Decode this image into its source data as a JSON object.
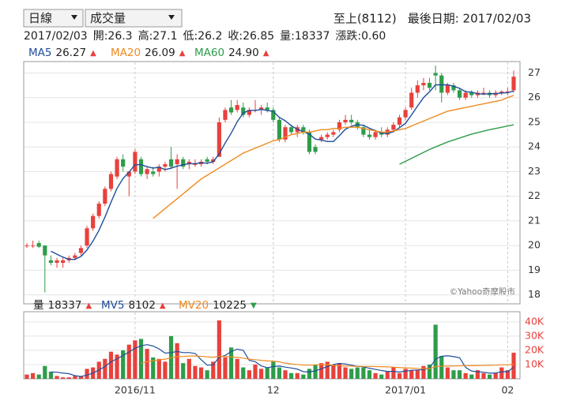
{
  "header": {
    "period": "日線",
    "indicator": "成交量",
    "stock": "至上(8112)",
    "last_date": "最後日期: 2017/02/03"
  },
  "quote": [
    "2017/02/03",
    "開:26.3",
    "高:27.1",
    "低:26.2",
    "收:26.85",
    "量:18337",
    "漲跌:0.60"
  ],
  "chart_data": [
    {
      "type": "candlestick",
      "up_color": "#e8413c",
      "down_color": "#2e9c4a",
      "source": "©Yahoo奇摩股市",
      "ylim": [
        17.7,
        27.4
      ],
      "yticks": [
        18,
        19,
        20,
        21,
        22,
        23,
        24,
        25,
        26,
        27
      ],
      "grid": true,
      "open": [
        20.0,
        20.0,
        20.1,
        20.0,
        19.4,
        19.3,
        19.3,
        19.4,
        19.5,
        19.7,
        20.0,
        20.7,
        21.2,
        21.7,
        22.3,
        22.8,
        23.5,
        22.8,
        23.0,
        23.5,
        22.9,
        23.0,
        23.0,
        23.2,
        23.5,
        23.3,
        23.5,
        23.3,
        23.3,
        23.3,
        23.5,
        23.4,
        23.6,
        25.1,
        25.6,
        25.5,
        25.6,
        25.3,
        25.5,
        25.5,
        25.6,
        25.5,
        25.1,
        24.3,
        24.8,
        24.6,
        24.8,
        24.6,
        24.0,
        24.3,
        24.4,
        24.5,
        24.7,
        25.0,
        25.1,
        25.0,
        24.8,
        24.5,
        24.4,
        24.6,
        24.5,
        24.7,
        24.9,
        25.2,
        25.6,
        26.2,
        26.5,
        26.6,
        27.0,
        26.9,
        26.2,
        26.5,
        26.3,
        26.0,
        26.2,
        26.1,
        26.2,
        26.2,
        26.1,
        26.2,
        26.2,
        26.3
      ],
      "high": [
        20.1,
        20.2,
        20.2,
        20.0,
        19.6,
        19.5,
        19.5,
        19.6,
        19.7,
        20.0,
        20.8,
        21.3,
        21.8,
        22.4,
        23.0,
        23.6,
        23.7,
        23.0,
        23.9,
        23.6,
        23.2,
        23.2,
        23.3,
        23.4,
        24.0,
        23.7,
        23.6,
        23.5,
        23.5,
        23.5,
        23.6,
        23.6,
        25.2,
        25.6,
        25.9,
        25.9,
        25.8,
        25.6,
        25.9,
        25.7,
        25.8,
        25.6,
        25.2,
        24.9,
        24.9,
        24.9,
        24.9,
        24.7,
        24.1,
        24.5,
        24.6,
        24.7,
        25.1,
        25.3,
        25.3,
        25.1,
        24.9,
        24.7,
        24.7,
        24.8,
        24.8,
        25.0,
        25.3,
        25.6,
        26.4,
        26.7,
        26.8,
        26.8,
        27.3,
        27.0,
        26.6,
        26.6,
        26.4,
        26.3,
        26.3,
        26.3,
        26.4,
        26.3,
        26.3,
        26.3,
        26.4,
        27.1
      ],
      "low": [
        19.9,
        19.9,
        19.9,
        18.1,
        19.2,
        19.1,
        19.1,
        19.3,
        19.4,
        19.6,
        19.9,
        20.6,
        21.1,
        21.6,
        22.2,
        22.7,
        23.0,
        22.0,
        22.9,
        22.8,
        22.7,
        22.8,
        22.8,
        23.0,
        23.1,
        22.3,
        23.1,
        23.1,
        23.2,
        23.2,
        23.3,
        23.3,
        23.6,
        25.0,
        25.3,
        25.4,
        25.2,
        25.2,
        25.4,
        25.3,
        25.4,
        25.0,
        24.2,
        24.2,
        24.5,
        24.4,
        24.5,
        23.7,
        23.7,
        24.2,
        24.3,
        24.4,
        24.6,
        24.9,
        24.9,
        24.7,
        24.4,
        24.3,
        24.3,
        24.4,
        24.4,
        24.6,
        24.8,
        25.1,
        25.5,
        26.0,
        26.3,
        26.3,
        26.3,
        25.8,
        26.1,
        26.2,
        25.9,
        25.9,
        26.0,
        26.0,
        26.1,
        26.0,
        26.0,
        26.1,
        26.1,
        26.2
      ],
      "close": [
        20.0,
        20.0,
        19.95,
        19.6,
        19.3,
        19.4,
        19.4,
        19.5,
        19.6,
        19.9,
        20.7,
        21.2,
        21.7,
        22.3,
        22.9,
        23.5,
        23.2,
        23.0,
        23.8,
        22.9,
        23.1,
        22.9,
        23.2,
        23.3,
        23.2,
        23.5,
        23.2,
        23.4,
        23.3,
        23.4,
        23.4,
        23.5,
        25.0,
        25.5,
        25.4,
        25.7,
        25.3,
        25.5,
        25.5,
        25.6,
        25.5,
        25.1,
        24.3,
        24.8,
        24.6,
        24.8,
        24.6,
        23.8,
        23.8,
        24.4,
        24.5,
        24.6,
        25.0,
        25.1,
        25.0,
        24.8,
        24.5,
        24.4,
        24.6,
        24.5,
        24.7,
        24.9,
        25.2,
        25.5,
        26.2,
        26.5,
        26.6,
        26.4,
        26.9,
        26.2,
        26.5,
        26.3,
        26.0,
        26.2,
        26.1,
        26.2,
        26.2,
        26.1,
        26.2,
        26.25,
        26.25,
        26.85
      ],
      "series": [
        {
          "name": "MA5",
          "color": "#1f4e9c",
          "legend_value": 26.27,
          "arrow": "▲",
          "arrow_color": "#e8413c",
          "values": [
            null,
            null,
            null,
            null,
            19.77,
            19.65,
            19.53,
            19.44,
            19.44,
            19.56,
            19.82,
            20.18,
            20.62,
            21.16,
            21.76,
            22.32,
            22.72,
            22.98,
            23.28,
            23.28,
            23.2,
            23.14,
            23.18,
            23.08,
            23.14,
            23.22,
            23.28,
            23.32,
            23.32,
            23.36,
            23.34,
            23.4,
            23.72,
            24.16,
            24.56,
            25.02,
            25.38,
            25.48,
            25.48,
            25.52,
            25.48,
            25.44,
            25.2,
            25.06,
            24.86,
            24.72,
            24.62,
            24.52,
            24.32,
            24.28,
            24.22,
            24.22,
            24.46,
            24.72,
            24.84,
            24.9,
            24.88,
            24.76,
            24.66,
            24.56,
            24.54,
            24.62,
            24.78,
            24.96,
            25.3,
            25.66,
            26.0,
            26.24,
            26.52,
            26.52,
            26.52,
            26.46,
            26.38,
            26.24,
            26.22,
            26.16,
            26.14,
            26.16,
            26.16,
            26.19,
            26.2,
            26.27
          ]
        },
        {
          "name": "MA20",
          "color": "#ef8a1f",
          "legend_value": 26.09,
          "arrow": "▲",
          "arrow_color": "#e8413c",
          "values": [
            null,
            null,
            null,
            null,
            null,
            null,
            null,
            null,
            null,
            null,
            null,
            null,
            null,
            null,
            null,
            null,
            null,
            null,
            null,
            null,
            null,
            21.1,
            21.3,
            21.5,
            21.7,
            21.9,
            22.1,
            22.3,
            22.5,
            22.7,
            22.85,
            23.0,
            23.15,
            23.3,
            23.45,
            23.6,
            23.75,
            23.85,
            23.95,
            24.05,
            24.15,
            24.25,
            24.3,
            24.4,
            24.5,
            24.55,
            24.6,
            24.6,
            24.65,
            24.7,
            24.7,
            24.75,
            24.75,
            24.8,
            24.8,
            24.8,
            24.75,
            24.7,
            24.65,
            24.6,
            24.6,
            24.65,
            24.7,
            24.75,
            24.85,
            24.95,
            25.05,
            25.15,
            25.25,
            25.35,
            25.45,
            25.5,
            25.55,
            25.6,
            25.65,
            25.7,
            25.75,
            25.8,
            25.85,
            25.9,
            26.0,
            26.09
          ]
        },
        {
          "name": "MA60",
          "color": "#2e9c4a",
          "legend_value": {
            "value": 24.9,
            "label": "24.90"
          },
          "arrow": "▲",
          "arrow_color": "#e8413c",
          "values": [
            null,
            null,
            null,
            null,
            null,
            null,
            null,
            null,
            null,
            null,
            null,
            null,
            null,
            null,
            null,
            null,
            null,
            null,
            null,
            null,
            null,
            null,
            null,
            null,
            null,
            null,
            null,
            null,
            null,
            null,
            null,
            null,
            null,
            null,
            null,
            null,
            null,
            null,
            null,
            null,
            null,
            null,
            null,
            null,
            null,
            null,
            null,
            null,
            null,
            null,
            null,
            null,
            null,
            null,
            null,
            null,
            null,
            null,
            null,
            null,
            null,
            null,
            23.3,
            23.42,
            23.54,
            23.66,
            23.78,
            23.9,
            24.0,
            24.1,
            24.2,
            24.28,
            24.36,
            24.44,
            24.52,
            24.58,
            24.64,
            24.7,
            24.75,
            24.8,
            24.85,
            24.9
          ]
        }
      ]
    },
    {
      "type": "bar",
      "categories": [
        null,
        null,
        null,
        null,
        null,
        null,
        null,
        null,
        null,
        null,
        null,
        null,
        null,
        null,
        null,
        null,
        null,
        null,
        "2016/11",
        null,
        null,
        null,
        null,
        null,
        null,
        null,
        null,
        null,
        null,
        null,
        null,
        null,
        null,
        null,
        null,
        null,
        null,
        null,
        null,
        null,
        null,
        "12",
        null,
        null,
        null,
        null,
        null,
        null,
        null,
        null,
        null,
        null,
        null,
        null,
        null,
        null,
        null,
        null,
        null,
        null,
        null,
        null,
        null,
        "2017/01",
        null,
        null,
        null,
        null,
        null,
        null,
        null,
        null,
        null,
        null,
        null,
        null,
        null,
        null,
        null,
        null,
        "02",
        null
      ],
      "ylim": [
        0,
        46000
      ],
      "yticks": [
        {
          "value": 10000,
          "label": "10K"
        },
        {
          "value": 20000,
          "label": "20K"
        },
        {
          "value": 30000,
          "label": "30K"
        },
        {
          "value": 40000,
          "label": "40K"
        }
      ],
      "series": [
        {
          "name": "量",
          "type": "bar",
          "color": "#222222",
          "legend_value": 18337,
          "arrow": "▲",
          "arrow_color": "#e8413c",
          "values": [
            3000,
            4000,
            3000,
            9000,
            5000,
            2000,
            1000,
            1000,
            2000,
            2000,
            7000,
            8000,
            12000,
            14000,
            19000,
            17000,
            20000,
            24000,
            27000,
            28000,
            21000,
            15000,
            14000,
            12000,
            30000,
            25000,
            11000,
            14000,
            9000,
            8000,
            6000,
            12000,
            41000,
            15000,
            22000,
            14000,
            8000,
            6000,
            10000,
            7000,
            8000,
            12000,
            8000,
            6000,
            4000,
            4000,
            3000,
            7000,
            10000,
            11000,
            12000,
            10000,
            11000,
            8000,
            7000,
            8000,
            8000,
            6000,
            4000,
            3000,
            5000,
            8000,
            4000,
            7000,
            6000,
            6000,
            9000,
            10000,
            38000,
            16000,
            8000,
            6000,
            6000,
            4000,
            3000,
            6000,
            4000,
            3000,
            4000,
            8000,
            6000,
            18337
          ]
        },
        {
          "name": "MV5",
          "type": "line",
          "color": "#1f4e9c",
          "legend_value": 8102,
          "arrow": "▲",
          "arrow_color": "#e8413c",
          "values": [
            null,
            null,
            null,
            null,
            4800,
            4600,
            4000,
            3600,
            2200,
            1600,
            2600,
            4000,
            6200,
            8600,
            12000,
            14000,
            16400,
            18800,
            21400,
            23200,
            24000,
            23000,
            21000,
            18000,
            18400,
            19200,
            18400,
            18400,
            17800,
            13400,
            9600,
            9800,
            15200,
            16400,
            19200,
            20800,
            20000,
            13000,
            12000,
            9000,
            7800,
            8600,
            9000,
            8200,
            7600,
            6800,
            5000,
            4800,
            5600,
            7000,
            8600,
            10000,
            10800,
            10400,
            9600,
            8800,
            8400,
            7400,
            6600,
            5800,
            5200,
            5200,
            4800,
            5400,
            6000,
            6200,
            6400,
            7600,
            13800,
            15800,
            16200,
            15600,
            14800,
            8000,
            5400,
            5000,
            4600,
            4000,
            4000,
            5000,
            5000,
            8102
          ]
        },
        {
          "name": "MV20",
          "type": "line",
          "color": "#ef8a1f",
          "legend_value": 10225,
          "arrow": "▼",
          "arrow_color": "#2e9c4a",
          "values": [
            null,
            null,
            null,
            null,
            null,
            null,
            null,
            null,
            null,
            null,
            null,
            null,
            null,
            null,
            null,
            null,
            null,
            null,
            null,
            11000,
            12000,
            12700,
            13300,
            13800,
            14800,
            15500,
            15700,
            16000,
            16000,
            15800,
            15400,
            15100,
            15800,
            15600,
            15400,
            15100,
            14500,
            13800,
            13400,
            13000,
            12600,
            12400,
            11900,
            11000,
            10400,
            10000,
            9700,
            9600,
            9800,
            9900,
            10000,
            9500,
            9100,
            9000,
            8900,
            8800,
            8700,
            8700,
            8600,
            8500,
            8400,
            8200,
            7900,
            7700,
            7500,
            7300,
            7200,
            7200,
            8500,
            8900,
            9000,
            9000,
            9100,
            9200,
            9200,
            9300,
            9400,
            9500,
            9600,
            9800,
            9900,
            10225
          ]
        }
      ]
    }
  ]
}
